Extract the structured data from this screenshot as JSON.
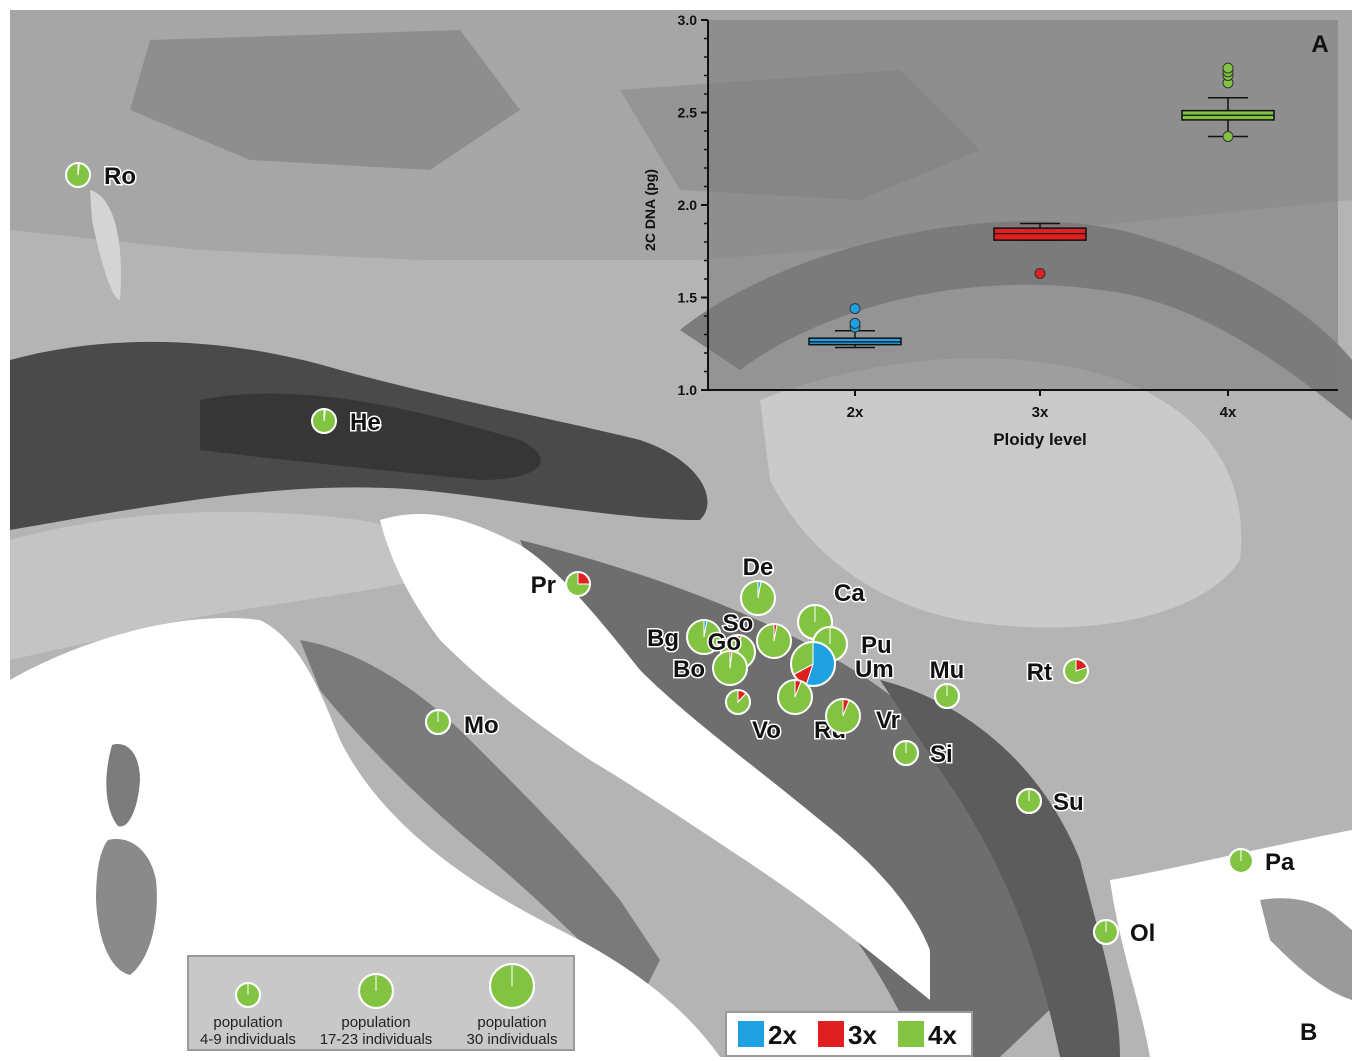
{
  "panel_a": {
    "letter": "A",
    "ylabel": "2C DNA (pg)",
    "xlabel": "Ploidy level",
    "ylim": [
      1.0,
      3.0
    ],
    "yticks": [
      "1.0",
      "1.5",
      "2.0",
      "2.5",
      "3.0"
    ],
    "categories": [
      "2x",
      "3x",
      "4x"
    ],
    "boxes": [
      {
        "cat": "2x",
        "color": "#1fa0e0",
        "q1": 1.245,
        "median": 1.26,
        "q3": 1.28,
        "whisker_low": 1.23,
        "whisker_high": 1.32,
        "outliers": [
          1.34,
          1.36,
          1.44
        ]
      },
      {
        "cat": "3x",
        "color": "#e02020",
        "q1": 1.81,
        "median": 1.845,
        "q3": 1.875,
        "whisker_low": 1.81,
        "whisker_high": 1.9,
        "outliers": [
          1.63
        ]
      },
      {
        "cat": "4x",
        "color": "#82c341",
        "q1": 2.46,
        "median": 2.485,
        "q3": 2.51,
        "whisker_low": 2.37,
        "whisker_high": 2.58,
        "outliers": [
          2.37,
          2.66,
          2.7,
          2.72,
          2.74
        ]
      }
    ]
  },
  "panel_b_letter": "B",
  "colors": {
    "2x": "#1fa0e0",
    "3x": "#e02020",
    "4x": "#82c341"
  },
  "populations": [
    {
      "label": "Ro",
      "size": "small",
      "shares": [
        0,
        0.02,
        0.98
      ]
    },
    {
      "label": "He",
      "size": "small",
      "shares": [
        0,
        0.02,
        0.98
      ]
    },
    {
      "label": "Pr",
      "size": "small",
      "shares": [
        0,
        0.25,
        0.75
      ]
    },
    {
      "label": "De",
      "size": "medium",
      "shares": [
        0.03,
        0,
        0.97
      ]
    },
    {
      "label": "Ca",
      "size": "medium",
      "shares": [
        0,
        0,
        1
      ]
    },
    {
      "label": "So",
      "size": "medium",
      "shares": [
        0,
        0.03,
        0.97
      ]
    },
    {
      "label": "Bg",
      "size": "medium",
      "shares": [
        0.03,
        0,
        0.97
      ]
    },
    {
      "label": "Go",
      "size": "medium",
      "shares": [
        0,
        0.03,
        0.97
      ]
    },
    {
      "label": "Pu",
      "size": "medium",
      "shares": [
        0,
        0,
        1
      ]
    },
    {
      "label": "Bo",
      "size": "medium",
      "shares": [
        0,
        0.02,
        0.98
      ]
    },
    {
      "label": "Um",
      "size": "large",
      "shares": [
        0.55,
        0.12,
        0.33
      ]
    },
    {
      "label": "Mu",
      "size": "small",
      "shares": [
        0,
        0,
        1
      ]
    },
    {
      "label": "Rt",
      "size": "small",
      "shares": [
        0,
        0.2,
        0.8
      ]
    },
    {
      "label": "Vo",
      "size": "small",
      "shares": [
        0,
        0.12,
        0.88
      ]
    },
    {
      "label": "Ru",
      "size": "medium",
      "shares": [
        0,
        0.06,
        0.94
      ]
    },
    {
      "label": "Vr",
      "size": "medium",
      "shares": [
        0,
        0.06,
        0.94
      ]
    },
    {
      "label": "Mo",
      "size": "small",
      "shares": [
        0,
        0,
        1
      ]
    },
    {
      "label": "Si",
      "size": "small",
      "shares": [
        0,
        0,
        1
      ]
    },
    {
      "label": "Su",
      "size": "small",
      "shares": [
        0,
        0,
        1
      ]
    },
    {
      "label": "Pa",
      "size": "small",
      "shares": [
        0,
        0,
        1
      ]
    },
    {
      "label": "Ol",
      "size": "small",
      "shares": [
        0,
        0,
        1
      ]
    }
  ],
  "size_legend": [
    {
      "size": "small",
      "line1": "population",
      "line2": "4-9 individuals"
    },
    {
      "size": "medium",
      "line1": "population",
      "line2": "17-23 individuals"
    },
    {
      "size": "large",
      "line1": "population",
      "line2": "30 individuals"
    }
  ],
  "color_legend": [
    {
      "key": "2x",
      "label": "2x"
    },
    {
      "key": "3x",
      "label": "3x"
    },
    {
      "key": "4x",
      "label": "4x"
    }
  ]
}
